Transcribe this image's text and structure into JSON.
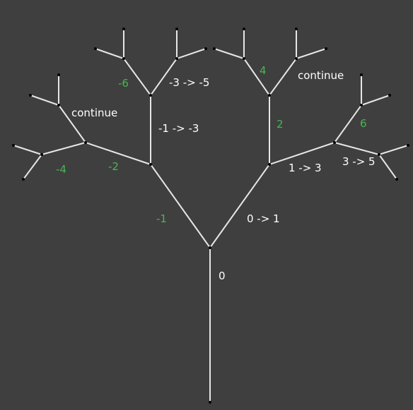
{
  "colors": {
    "background": "#3f3f3f",
    "branch": "#e6e6e6",
    "node": "#000000",
    "label_white": "#ffffff",
    "label_green": "#4ab552"
  },
  "labels": {
    "trunk_angle": "0",
    "right_branch": "0 -> 1",
    "left_branch": "-1",
    "right_up": "2",
    "right_right": "1 -> 3",
    "left_up": "-1 -> -3",
    "left_left": "-2",
    "right_top": "4",
    "right_continue": "continue",
    "far_right_up": "6",
    "far_right_right": "3 -> 5",
    "left_top": "-6",
    "left_top_right": "-3 -> -5",
    "left_continue": "continue",
    "far_left": "-4"
  }
}
